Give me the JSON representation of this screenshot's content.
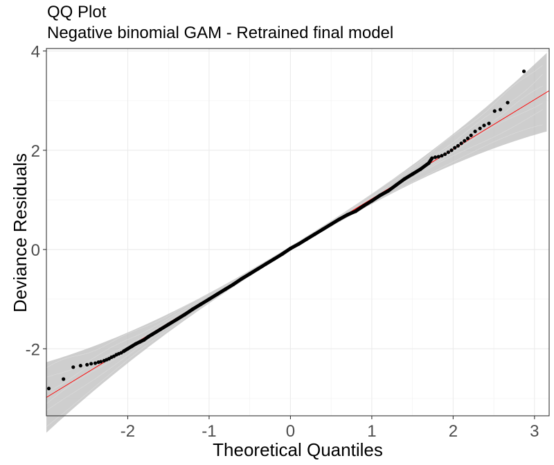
{
  "chart_data": {
    "type": "scatter",
    "title": "QQ Plot",
    "subtitle": "Negative binomial GAM - Retrained final model",
    "xlabel": "Theoretical Quantiles",
    "ylabel": "Deviance Residuals",
    "xlim": [
      -3.0,
      3.18
    ],
    "ylim": [
      -3.35,
      4.05
    ],
    "x_ticks": [
      -2,
      -1,
      0,
      1,
      2,
      3
    ],
    "x_tick_labels": [
      "-2",
      "-1",
      "0",
      "1",
      "2",
      "3"
    ],
    "y_ticks": [
      -2,
      0,
      2,
      4
    ],
    "y_tick_labels": [
      "-2",
      "0",
      "2",
      "4"
    ],
    "grid": true,
    "reference_line": {
      "slope": 1.0,
      "intercept": 0.02,
      "color": "#ff0000"
    },
    "envelope_color": "#bebebe",
    "point_color": "#000000",
    "points": {
      "x": [
        -2.97,
        -2.79,
        -2.67,
        -2.58,
        -2.5,
        -2.45,
        -2.4,
        -2.36,
        -2.33,
        -2.29,
        -2.26,
        -2.23,
        -2.2,
        -2.17,
        -2.14,
        -2.11,
        -2.08,
        -2.05,
        -2.0,
        -1.95,
        -1.9,
        -1.85,
        -1.8,
        -1.75,
        -1.7,
        -1.65,
        -1.6,
        -1.5,
        -1.4,
        -1.3,
        -1.2,
        -1.1,
        -1.0,
        -0.9,
        -0.8,
        -0.7,
        -0.6,
        -0.5,
        -0.4,
        -0.3,
        -0.2,
        -0.1,
        0.0,
        0.1,
        0.2,
        0.3,
        0.4,
        0.5,
        0.6,
        0.7,
        0.8,
        0.9,
        1.0,
        1.1,
        1.2,
        1.3,
        1.4,
        1.5,
        1.6,
        1.7,
        1.74,
        1.78,
        1.82,
        1.86,
        1.9,
        1.94,
        1.98,
        2.02,
        2.06,
        2.1,
        2.14,
        2.18,
        2.22,
        2.27,
        2.33,
        2.38,
        2.44,
        2.51,
        2.58,
        2.67,
        2.87
      ],
      "y": [
        -2.8,
        -2.61,
        -2.37,
        -2.34,
        -2.32,
        -2.3,
        -2.29,
        -2.27,
        -2.26,
        -2.24,
        -2.22,
        -2.2,
        -2.17,
        -2.15,
        -2.12,
        -2.1,
        -2.08,
        -2.05,
        -2.0,
        -1.95,
        -1.9,
        -1.86,
        -1.82,
        -1.76,
        -1.71,
        -1.66,
        -1.61,
        -1.51,
        -1.41,
        -1.31,
        -1.2,
        -1.1,
        -1.0,
        -0.9,
        -0.8,
        -0.7,
        -0.59,
        -0.49,
        -0.39,
        -0.29,
        -0.19,
        -0.09,
        0.02,
        0.11,
        0.21,
        0.31,
        0.41,
        0.51,
        0.61,
        0.7,
        0.77,
        0.88,
        0.98,
        1.09,
        1.18,
        1.3,
        1.42,
        1.52,
        1.62,
        1.74,
        1.84,
        1.86,
        1.87,
        1.89,
        1.92,
        1.96,
        2.0,
        2.05,
        2.09,
        2.14,
        2.19,
        2.24,
        2.3,
        2.38,
        2.44,
        2.5,
        2.54,
        2.79,
        2.82,
        2.96,
        3.59
      ]
    }
  }
}
